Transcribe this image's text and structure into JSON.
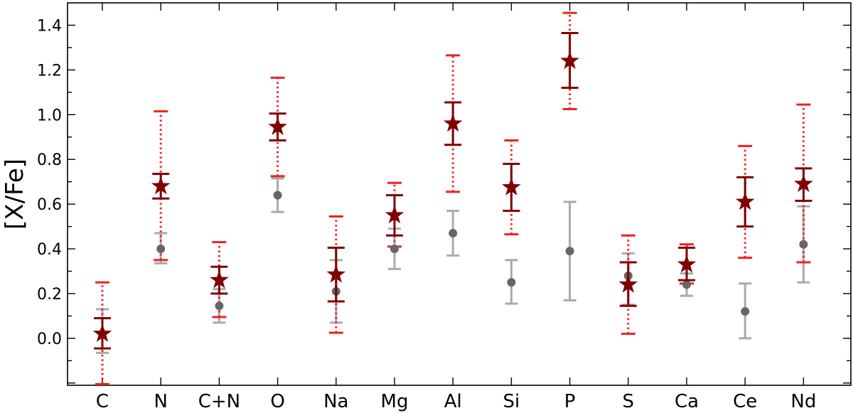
{
  "chart_data": {
    "type": "scatter",
    "title": "",
    "xlabel": "",
    "ylabel": "[X/Fe]",
    "categories": [
      "C",
      "N",
      "C+N",
      "O",
      "Na",
      "Mg",
      "Al",
      "Si",
      "P",
      "S",
      "Ca",
      "Ce",
      "Nd"
    ],
    "ylim": [
      -0.21,
      1.5
    ],
    "yticks": [
      0.0,
      0.2,
      0.4,
      0.6,
      0.8,
      1.0,
      1.2,
      1.4
    ],
    "ytick_labels": [
      "0.0",
      "0.2",
      "0.4",
      "0.6",
      "0.8",
      "1.0",
      "1.2",
      "1.4"
    ],
    "grid": false,
    "series": [
      {
        "marker": "circle",
        "color": "#666666",
        "errcolor": "#aaaaaa",
        "values": [
          0.02,
          0.4,
          0.145,
          0.64,
          0.21,
          0.4,
          0.47,
          0.25,
          0.39,
          0.28,
          0.24,
          0.12,
          0.42
        ],
        "err_low": [
          -0.065,
          0.335,
          0.07,
          0.565,
          0.07,
          0.31,
          0.37,
          0.155,
          0.17,
          0.15,
          0.19,
          0.0,
          0.25
        ],
        "err_high": [
          0.13,
          0.47,
          0.22,
          0.715,
          0.35,
          0.49,
          0.57,
          0.35,
          0.61,
          0.38,
          0.29,
          0.245,
          0.59
        ]
      },
      {
        "marker": "star",
        "color": "#800000",
        "inner_err_low": [
          -0.045,
          0.625,
          0.2,
          0.885,
          0.165,
          0.46,
          0.865,
          0.57,
          1.12,
          0.145,
          0.26,
          0.5,
          0.615
        ],
        "inner_err_high": [
          0.09,
          0.735,
          0.32,
          1.005,
          0.405,
          0.64,
          1.055,
          0.78,
          1.365,
          0.34,
          0.405,
          0.72,
          0.76
        ],
        "outer_color": "#ee2222",
        "outer_err_low": [
          -0.205,
          0.35,
          0.095,
          0.725,
          0.025,
          0.41,
          0.655,
          0.465,
          1.025,
          0.02,
          0.245,
          0.36,
          0.34
        ],
        "outer_err_high": [
          0.25,
          1.015,
          0.43,
          1.165,
          0.545,
          0.695,
          1.265,
          0.885,
          1.455,
          0.46,
          0.42,
          0.86,
          1.045
        ],
        "values": [
          0.02,
          0.68,
          0.26,
          0.945,
          0.285,
          0.55,
          0.96,
          0.675,
          1.24,
          0.24,
          0.33,
          0.61,
          0.69
        ]
      }
    ]
  }
}
